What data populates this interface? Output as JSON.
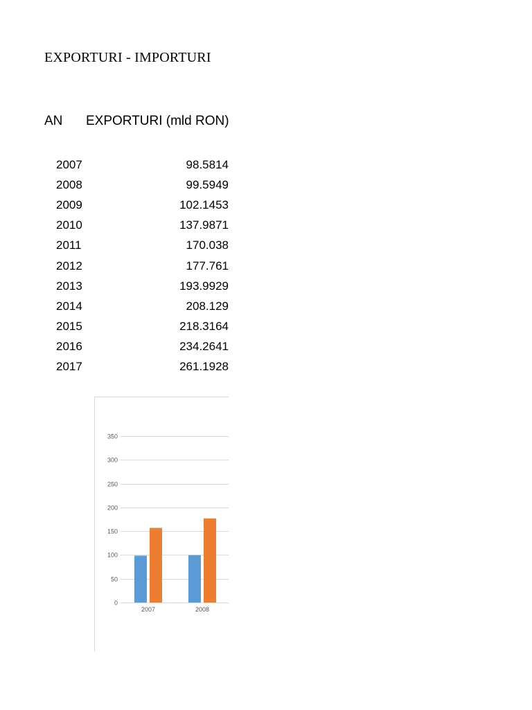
{
  "document": {
    "title": "EXPORTURI - IMPORTURI"
  },
  "table": {
    "headers": [
      "AN",
      "EXPORTURI (mld RON)"
    ],
    "rows": [
      {
        "year": "2007",
        "value": "98.5814"
      },
      {
        "year": "2008",
        "value": "99.5949"
      },
      {
        "year": "2009",
        "value": "102.1453"
      },
      {
        "year": "2010",
        "value": "137.9871"
      },
      {
        "year": "2011",
        "value": "170.038"
      },
      {
        "year": "2012",
        "value": "177.761"
      },
      {
        "year": "2013",
        "value": "193.9929"
      },
      {
        "year": "2014",
        "value": "208.129"
      },
      {
        "year": "2015",
        "value": "218.3164"
      },
      {
        "year": "2016",
        "value": "234.2641"
      },
      {
        "year": "2017",
        "value": "261.1928"
      }
    ]
  },
  "chart_data": {
    "type": "bar",
    "title": "",
    "xlabel": "",
    "ylabel": "",
    "categories": [
      "2007",
      "2008"
    ],
    "series": [
      {
        "values": [
          98.5814,
          99.5949
        ],
        "color": "#5b9bd5"
      },
      {
        "values": [
          157,
          177
        ],
        "color": "#ed7d31"
      }
    ],
    "ylim": [
      0,
      350
    ],
    "yticks": [
      0,
      50,
      100,
      150,
      200,
      250,
      300,
      350
    ],
    "grid": true,
    "gridline_color": "#d9d9d9",
    "frame_color": "#d9d9d9"
  }
}
